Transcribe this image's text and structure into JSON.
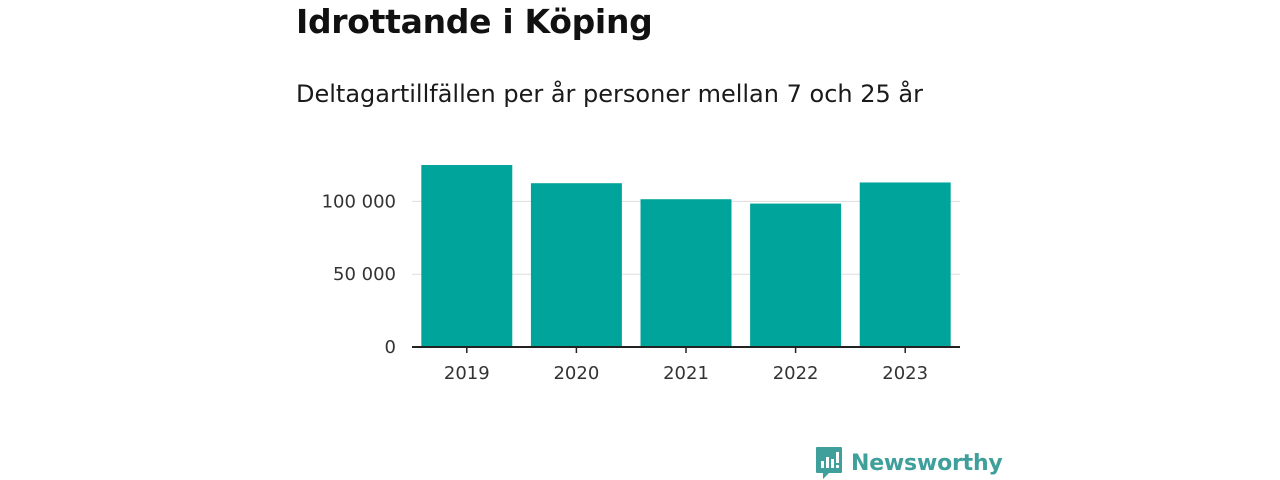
{
  "title": "Idrottande i Köping",
  "subtitle": "Deltagartillfällen per år personer mellan 7 och 25 år",
  "brand": {
    "name": "Newsworthy",
    "color": "#3f9f9b",
    "icon": "newsworthy-logo-icon"
  },
  "chart_data": {
    "type": "bar",
    "categories": [
      "2019",
      "2020",
      "2021",
      "2022",
      "2023"
    ],
    "values": [
      125000,
      112500,
      101500,
      98500,
      113000
    ],
    "yticks": [
      0,
      50000,
      100000
    ],
    "ytick_labels": [
      "0",
      "50 000",
      "100 000"
    ],
    "ylim": [
      0,
      125000
    ],
    "grid": true,
    "bar_color": "#00a49a",
    "grid_color": "#dddddd",
    "axis_color": "#222222",
    "xlabel": "",
    "ylabel": ""
  }
}
